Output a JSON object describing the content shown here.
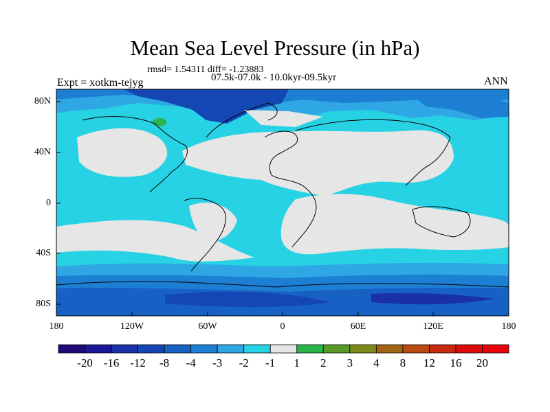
{
  "title": "Mean Sea Level Pressure (in hPa)",
  "stats": "rmsd= 1.54311 diff= -1.23883",
  "period": "07.5k-07.0k - 10.0kyr-09.5kyr",
  "experiment": "Expt = xotkm-tejyg",
  "season": "ANN",
  "map": {
    "lon_range": [
      -180,
      180
    ],
    "lat_range": [
      -90,
      90
    ],
    "lat_ticks": [
      "80N",
      "40N",
      "0",
      "40S",
      "80S"
    ],
    "lon_ticks": [
      "180",
      "120W",
      "60W",
      "0",
      "60E",
      "120E",
      "180"
    ]
  },
  "colorbar": {
    "levels": [
      "-20",
      "-16",
      "-12",
      "-8",
      "-4",
      "-3",
      "-2",
      "-1",
      "1",
      "2",
      "3",
      "4",
      "8",
      "12",
      "16",
      "20"
    ],
    "colors": [
      "#1f0a78",
      "#1a1896",
      "#1a30a8",
      "#1446b4",
      "#1760c4",
      "#1c7fd4",
      "#2ea7e4",
      "#26d2e3",
      "#e6e6e6",
      "#2ab54a",
      "#5a9a2a",
      "#7d8a1a",
      "#a06414",
      "#b84a12",
      "#c8280e",
      "#dc0a0a",
      "#e8000a"
    ]
  }
}
